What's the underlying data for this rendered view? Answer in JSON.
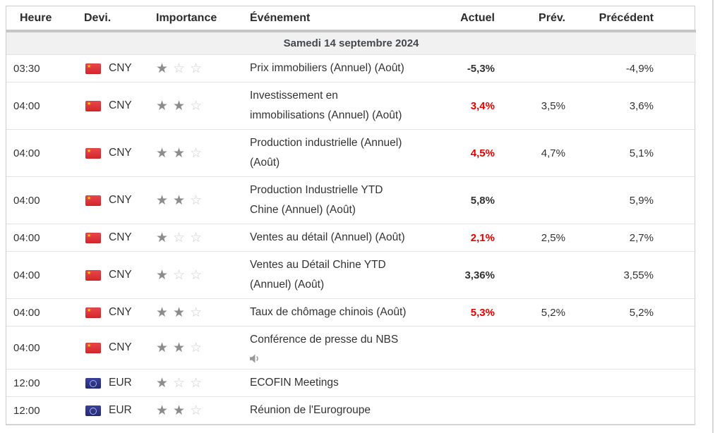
{
  "colors": {
    "actual_negative_red": "#e60000",
    "actual_bold_black": "#111111",
    "header_separator_bar": "#c6c6c6",
    "date_row_background": "#f1f1f1",
    "row_border": "#e3e3e3",
    "star_filled": "#8c8c8c",
    "star_empty": "#cdcdcd",
    "cn_flag_red": "#d2262b",
    "eu_flag_blue": "#232a74"
  },
  "table": {
    "columns": [
      {
        "key": "time",
        "label": "Heure"
      },
      {
        "key": "currency",
        "label": "Devi."
      },
      {
        "key": "importance",
        "label": "Importance"
      },
      {
        "key": "event",
        "label": "Événement"
      },
      {
        "key": "actual",
        "label": "Actuel"
      },
      {
        "key": "forecast",
        "label": "Prév."
      },
      {
        "key": "previous",
        "label": "Précédent"
      }
    ],
    "date_header": "Samedi 14 septembre 2024",
    "importance_max": 3,
    "rows": [
      {
        "time": "03:30",
        "currency": "CNY",
        "flag": "cn",
        "importance": 1,
        "event": "Prix immobiliers (Annuel) (Août)",
        "actual": "-5,3%",
        "actual_style": "bold-black",
        "forecast": "",
        "previous": "-4,9%",
        "audio_icon": false
      },
      {
        "time": "04:00",
        "currency": "CNY",
        "flag": "cn",
        "importance": 2,
        "event": "Investissement en\nimmobilisations (Annuel) (Août)",
        "actual": "3,4%",
        "actual_style": "red",
        "forecast": "3,5%",
        "previous": "3,6%",
        "audio_icon": false
      },
      {
        "time": "04:00",
        "currency": "CNY",
        "flag": "cn",
        "importance": 2,
        "event": "Production industrielle (Annuel)\n(Août)",
        "actual": "4,5%",
        "actual_style": "red",
        "forecast": "4,7%",
        "previous": "5,1%",
        "audio_icon": false
      },
      {
        "time": "04:00",
        "currency": "CNY",
        "flag": "cn",
        "importance": 2,
        "event": "Production Industrielle YTD\nChine (Annuel) (Août)",
        "actual": "5,8%",
        "actual_style": "bold-black",
        "forecast": "",
        "previous": "5,9%",
        "audio_icon": false
      },
      {
        "time": "04:00",
        "currency": "CNY",
        "flag": "cn",
        "importance": 1,
        "event": "Ventes au détail (Annuel) (Août)",
        "actual": "2,1%",
        "actual_style": "red",
        "forecast": "2,5%",
        "previous": "2,7%",
        "audio_icon": false
      },
      {
        "time": "04:00",
        "currency": "CNY",
        "flag": "cn",
        "importance": 1,
        "event": "Ventes au Détail Chine YTD\n(Annuel) (Août)",
        "actual": "3,36%",
        "actual_style": "bold-black",
        "forecast": "",
        "previous": "3,55%",
        "audio_icon": false
      },
      {
        "time": "04:00",
        "currency": "CNY",
        "flag": "cn",
        "importance": 2,
        "event": "Taux de chômage chinois (Août)",
        "actual": "5,3%",
        "actual_style": "red",
        "forecast": "5,2%",
        "previous": "5,2%",
        "audio_icon": false
      },
      {
        "time": "04:00",
        "currency": "CNY",
        "flag": "cn",
        "importance": 2,
        "event": "Conférence de presse du NBS",
        "actual": "",
        "actual_style": "",
        "forecast": "",
        "previous": "",
        "audio_icon": true
      },
      {
        "time": "12:00",
        "currency": "EUR",
        "flag": "eu",
        "importance": 1,
        "event": "ECOFIN Meetings",
        "actual": "",
        "actual_style": "",
        "forecast": "",
        "previous": "",
        "audio_icon": false
      },
      {
        "time": "12:00",
        "currency": "EUR",
        "flag": "eu",
        "importance": 2,
        "event": "Réunion de l'Eurogroupe",
        "actual": "",
        "actual_style": "",
        "forecast": "",
        "previous": "",
        "audio_icon": false
      }
    ]
  }
}
